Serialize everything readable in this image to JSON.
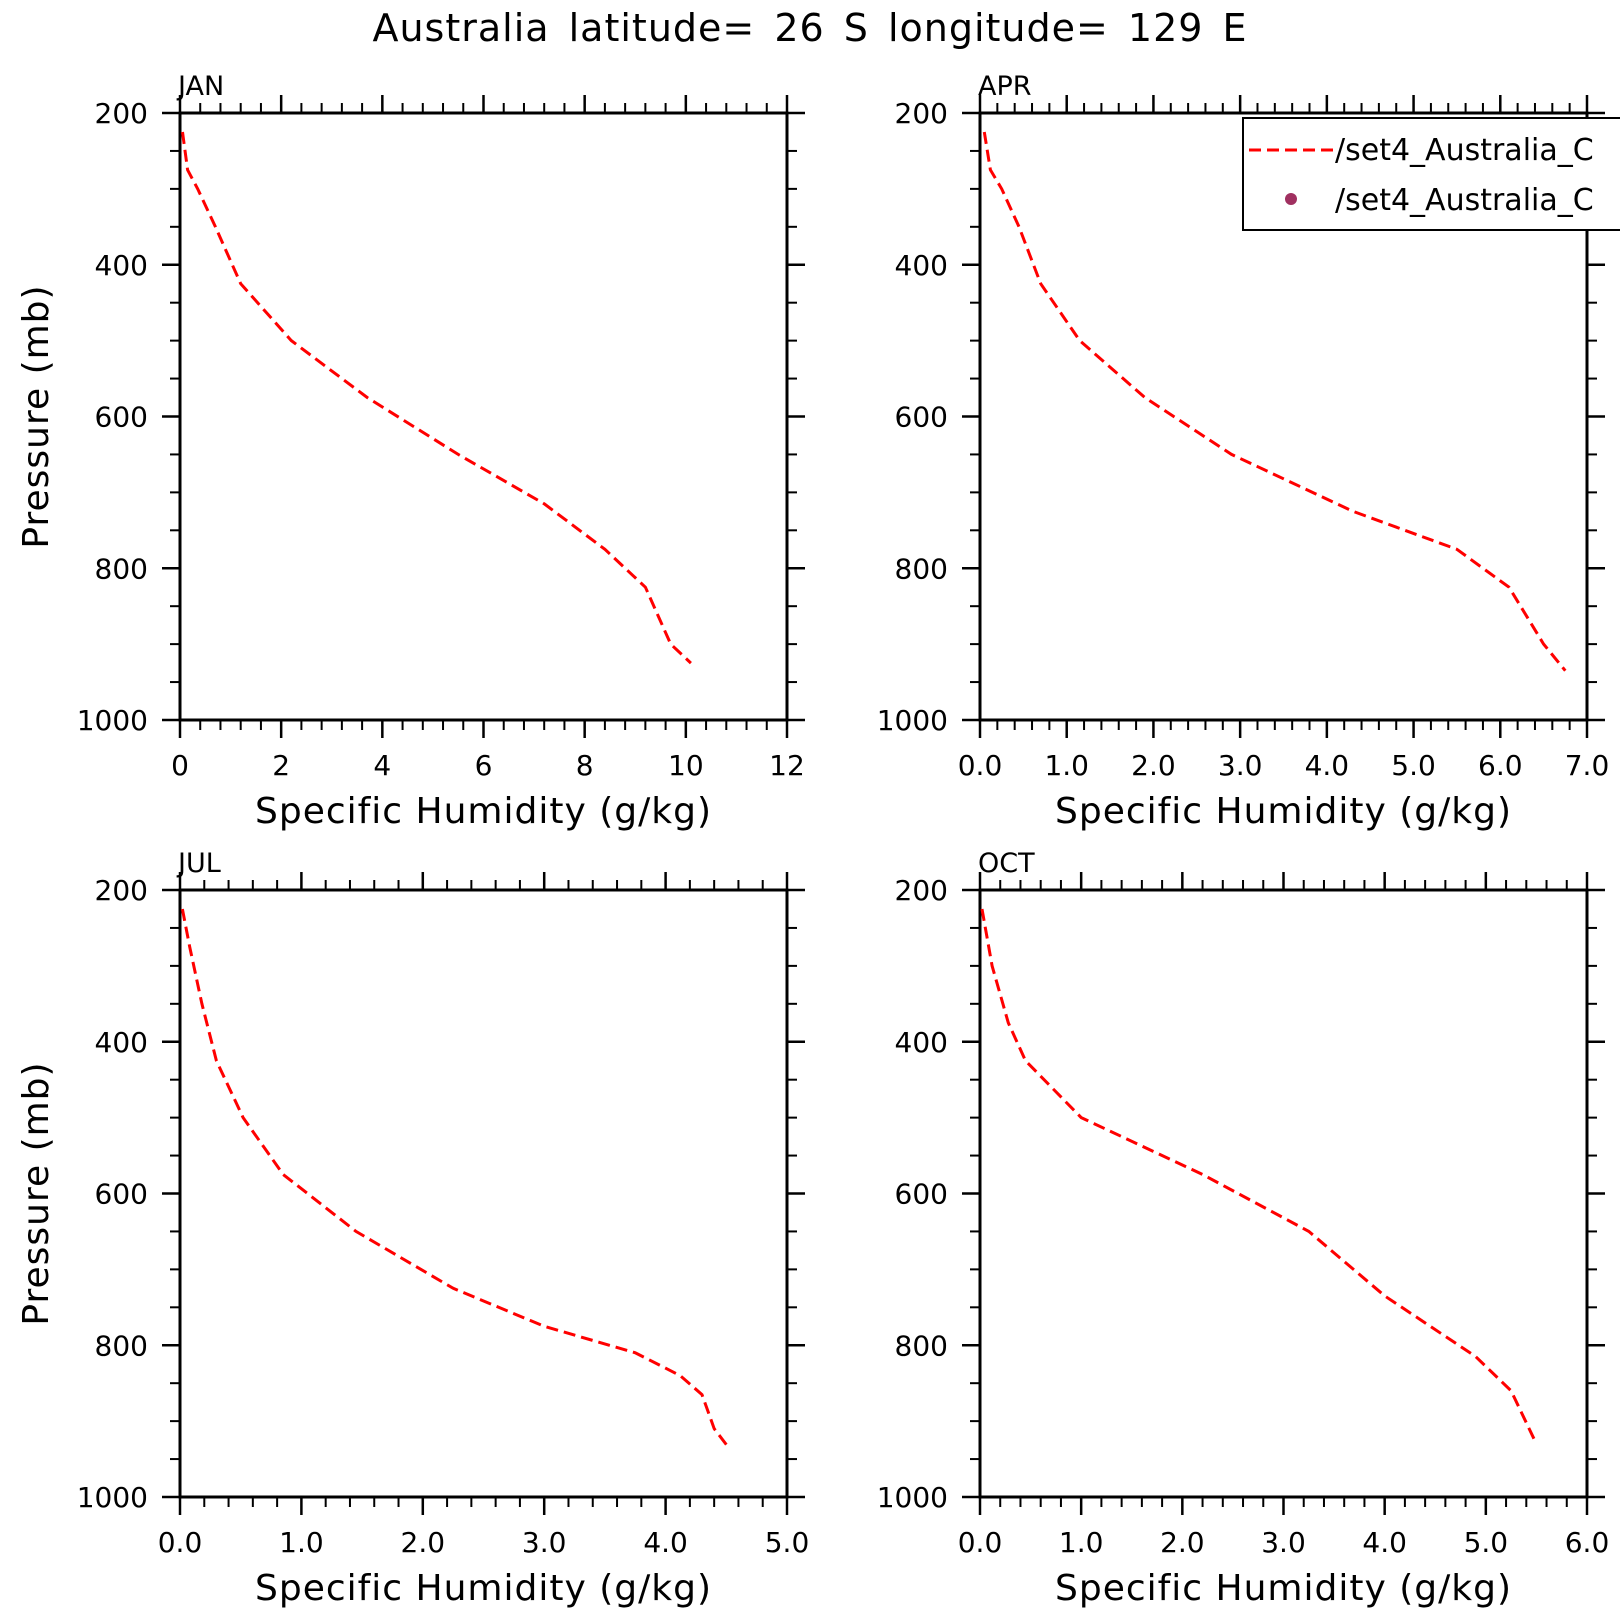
{
  "page": {
    "title": "Australia  latitude= 26 S longitude= 129 E"
  },
  "legend": {
    "entries": [
      {
        "label": "/set4_Australia_C",
        "marker": "dashed-line",
        "color": "#ff0000"
      },
      {
        "label": "/set4_Australia_C",
        "marker": "dot",
        "color": "#a03060"
      }
    ]
  },
  "chart_data": [
    {
      "type": "line",
      "panel_label": "JAN",
      "xlabel": "Specific Humidity (g/kg)",
      "ylabel": "Pressure (mb)",
      "xlim": [
        0,
        12
      ],
      "ylim": [
        1000,
        200
      ],
      "y_inverted": true,
      "xticks": [
        0,
        2,
        4,
        6,
        8,
        10,
        12
      ],
      "xtick_labels": [
        "0",
        "2",
        "4",
        "6",
        "8",
        "10",
        "12"
      ],
      "yticks": [
        200,
        400,
        600,
        800,
        1000
      ],
      "ytick_labels": [
        "200",
        "400",
        "600",
        "800",
        "1000"
      ],
      "series": [
        {
          "color": "#ff0000",
          "style": "dashed",
          "x": [
            0.05,
            0.15,
            0.35,
            0.7,
            1.2,
            2.2,
            3.7,
            5.5,
            7.2,
            8.4,
            9.2,
            9.7,
            10.1
          ],
          "y": [
            225,
            275,
            300,
            350,
            425,
            500,
            575,
            650,
            715,
            775,
            825,
            900,
            925
          ]
        }
      ]
    },
    {
      "type": "line",
      "panel_label": "APR",
      "xlabel": "Specific Humidity (g/kg)",
      "ylabel": "",
      "xlim": [
        0,
        7
      ],
      "ylim": [
        1000,
        200
      ],
      "y_inverted": true,
      "xticks": [
        0,
        1,
        2,
        3,
        4,
        5,
        6,
        7
      ],
      "xtick_labels": [
        "0.0",
        "1.0",
        "2.0",
        "3.0",
        "4.0",
        "5.0",
        "6.0",
        "7.0"
      ],
      "yticks": [
        200,
        400,
        600,
        800,
        1000
      ],
      "ytick_labels": [
        "200",
        "400",
        "600",
        "800",
        "1000"
      ],
      "series": [
        {
          "color": "#ff0000",
          "style": "dashed",
          "x": [
            0.05,
            0.12,
            0.25,
            0.45,
            0.7,
            1.15,
            1.9,
            2.9,
            4.3,
            5.5,
            6.1,
            6.5,
            6.75
          ],
          "y": [
            225,
            275,
            300,
            350,
            425,
            500,
            575,
            650,
            725,
            775,
            825,
            900,
            935
          ]
        }
      ]
    },
    {
      "type": "line",
      "panel_label": "JUL",
      "xlabel": "Specific Humidity (g/kg)",
      "ylabel": "Pressure (mb)",
      "xlim": [
        0,
        5
      ],
      "ylim": [
        1000,
        200
      ],
      "y_inverted": true,
      "xticks": [
        0,
        1,
        2,
        3,
        4,
        5
      ],
      "xtick_labels": [
        "0.0",
        "1.0",
        "2.0",
        "3.0",
        "4.0",
        "5.0"
      ],
      "yticks": [
        200,
        400,
        600,
        800,
        1000
      ],
      "ytick_labels": [
        "200",
        "400",
        "600",
        "800",
        "1000"
      ],
      "series": [
        {
          "color": "#ff0000",
          "style": "dashed",
          "x": [
            0.02,
            0.08,
            0.18,
            0.3,
            0.52,
            0.85,
            1.45,
            2.25,
            3.0,
            3.75,
            4.12,
            4.3,
            4.4,
            4.52
          ],
          "y": [
            225,
            275,
            350,
            425,
            500,
            575,
            650,
            725,
            775,
            810,
            840,
            865,
            910,
            935
          ]
        }
      ]
    },
    {
      "type": "line",
      "panel_label": "OCT",
      "xlabel": "Specific Humidity (g/kg)",
      "ylabel": "",
      "xlim": [
        0,
        6
      ],
      "ylim": [
        1000,
        200
      ],
      "y_inverted": true,
      "xticks": [
        0,
        1,
        2,
        3,
        4,
        5,
        6
      ],
      "xtick_labels": [
        "0.0",
        "1.0",
        "2.0",
        "3.0",
        "4.0",
        "5.0",
        "6.0"
      ],
      "yticks": [
        200,
        400,
        600,
        800,
        1000
      ],
      "ytick_labels": [
        "200",
        "400",
        "600",
        "800",
        "1000"
      ],
      "series": [
        {
          "color": "#ff0000",
          "style": "dashed",
          "x": [
            0.02,
            0.12,
            0.28,
            0.45,
            1.0,
            2.2,
            3.25,
            4.0,
            4.9,
            5.25,
            5.5
          ],
          "y": [
            225,
            300,
            375,
            425,
            500,
            575,
            650,
            735,
            815,
            860,
            930
          ]
        }
      ]
    }
  ]
}
